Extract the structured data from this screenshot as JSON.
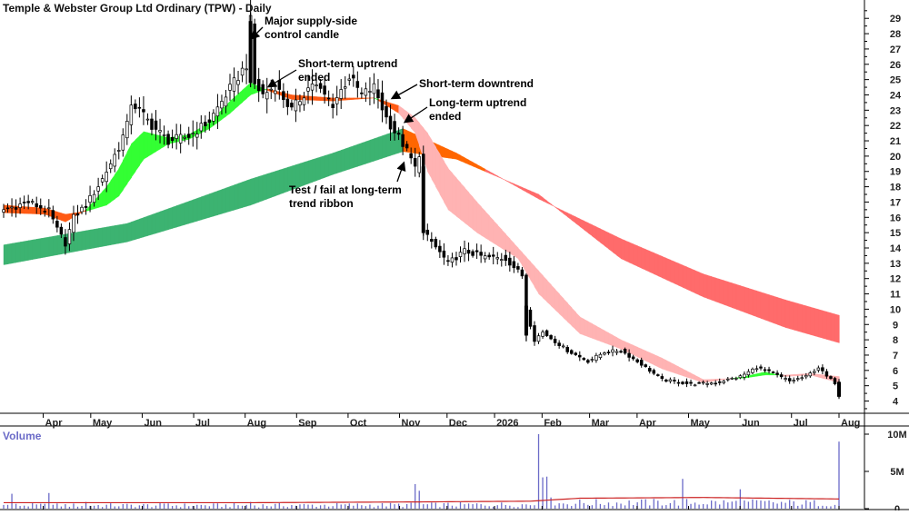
{
  "chart_data": {
    "type": "candlestick",
    "title": "Temple & Webster Group Ltd Ordinary (TPW) - Daily",
    "volume_label": "Volume",
    "price_axis": {
      "range": [
        3.2,
        30.2
      ],
      "ticks": [
        4,
        5,
        6,
        7,
        8,
        9,
        10,
        11,
        12,
        13,
        14,
        15,
        16,
        17,
        18,
        19,
        20,
        21,
        22,
        23,
        24,
        25,
        26,
        27,
        28,
        29
      ]
    },
    "volume_axis": {
      "range": [
        0,
        10000000
      ],
      "ticks": [
        {
          "value": 0,
          "label": "0"
        },
        {
          "value": 5000000,
          "label": "5M"
        },
        {
          "value": 10000000,
          "label": "10M"
        }
      ]
    },
    "x_labels": [
      "Apr",
      "May",
      "Jun",
      "Jul",
      "Aug",
      "Sep",
      "Oct",
      "Nov",
      "Dec",
      "2026",
      "Feb",
      "Mar",
      "Apr",
      "May",
      "Jun",
      "Jul",
      "Aug"
    ],
    "price_path": [
      [
        0,
        16.5
      ],
      [
        6,
        17.0
      ],
      [
        11,
        16.4
      ],
      [
        13,
        15.2
      ],
      [
        15,
        14.3
      ],
      [
        17,
        16.0
      ],
      [
        20,
        16.8
      ],
      [
        24,
        18.5
      ],
      [
        28,
        20.6
      ],
      [
        30,
        22.0
      ],
      [
        31,
        23.5
      ],
      [
        33,
        23.0
      ],
      [
        36,
        22.0
      ],
      [
        40,
        21.0
      ],
      [
        45,
        21.3
      ],
      [
        50,
        22.3
      ],
      [
        54,
        24.0
      ],
      [
        57,
        25.2
      ],
      [
        59,
        26.0
      ],
      [
        60,
        28.8
      ],
      [
        61,
        24.7
      ],
      [
        63,
        24.0
      ],
      [
        66,
        24.6
      ],
      [
        70,
        23.0
      ],
      [
        75,
        24.8
      ],
      [
        80,
        23.4
      ],
      [
        84,
        25.2
      ],
      [
        87,
        24.0
      ],
      [
        90,
        24.5
      ],
      [
        93,
        22.5
      ],
      [
        95,
        21.6
      ],
      [
        97,
        20.8
      ],
      [
        99,
        19.8
      ],
      [
        100,
        19.2
      ],
      [
        101,
        20.2
      ],
      [
        102,
        15.0
      ],
      [
        104,
        14.4
      ],
      [
        108,
        13.0
      ],
      [
        112,
        13.8
      ],
      [
        117,
        13.4
      ],
      [
        122,
        13.3
      ],
      [
        126,
        12.2
      ],
      [
        127,
        10.0
      ],
      [
        129,
        8.0
      ],
      [
        131,
        8.5
      ],
      [
        137,
        7.3
      ],
      [
        142,
        6.6
      ],
      [
        146,
        7.2
      ],
      [
        150,
        7.3
      ],
      [
        155,
        6.4
      ],
      [
        160,
        5.4
      ],
      [
        167,
        5.1
      ],
      [
        173,
        5.2
      ],
      [
        179,
        5.6
      ],
      [
        183,
        6.2
      ],
      [
        187,
        5.8
      ],
      [
        191,
        5.3
      ],
      [
        195,
        5.6
      ],
      [
        198,
        6.2
      ],
      [
        200,
        5.6
      ],
      [
        202,
        5.2
      ],
      [
        203,
        4.4
      ]
    ],
    "short_term_ribbon": {
      "fast": [
        [
          0,
          16.3
        ],
        [
          10,
          16.2
        ],
        [
          15,
          15.7
        ],
        [
          20,
          16.5
        ],
        [
          25,
          18.0
        ],
        [
          28,
          19.2
        ],
        [
          31,
          20.8
        ],
        [
          34,
          21.6
        ],
        [
          40,
          21.2
        ],
        [
          45,
          21.4
        ],
        [
          50,
          22.2
        ],
        [
          55,
          23.6
        ],
        [
          60,
          24.8
        ],
        [
          64,
          24.3
        ],
        [
          70,
          23.7
        ],
        [
          80,
          23.6
        ],
        [
          90,
          23.8
        ],
        [
          96,
          22.8
        ],
        [
          100,
          21.5
        ],
        [
          103,
          19.0
        ],
        [
          108,
          16.5
        ],
        [
          115,
          15.0
        ],
        [
          125,
          13.3
        ],
        [
          130,
          11.0
        ],
        [
          140,
          8.4
        ],
        [
          150,
          7.4
        ],
        [
          160,
          6.1
        ],
        [
          170,
          5.2
        ],
        [
          180,
          5.6
        ],
        [
          185,
          5.9
        ],
        [
          190,
          5.6
        ],
        [
          196,
          5.7
        ],
        [
          203,
          5.2
        ]
      ],
      "slow": [
        [
          0,
          16.8
        ],
        [
          10,
          16.6
        ],
        [
          15,
          16.2
        ],
        [
          20,
          16.4
        ],
        [
          25,
          16.8
        ],
        [
          28,
          17.4
        ],
        [
          31,
          18.6
        ],
        [
          34,
          19.8
        ],
        [
          40,
          20.8
        ],
        [
          45,
          21.1
        ],
        [
          50,
          21.8
        ],
        [
          55,
          22.8
        ],
        [
          60,
          24.0
        ],
        [
          64,
          24.4
        ],
        [
          70,
          24.0
        ],
        [
          80,
          23.8
        ],
        [
          90,
          23.8
        ],
        [
          96,
          23.3
        ],
        [
          100,
          22.5
        ],
        [
          103,
          21.5
        ],
        [
          108,
          19.2
        ],
        [
          115,
          17.0
        ],
        [
          125,
          14.0
        ],
        [
          130,
          12.5
        ],
        [
          140,
          9.5
        ],
        [
          150,
          8.0
        ],
        [
          160,
          6.8
        ],
        [
          170,
          5.4
        ],
        [
          180,
          5.5
        ],
        [
          185,
          5.7
        ],
        [
          190,
          5.7
        ],
        [
          196,
          5.8
        ],
        [
          203,
          5.6
        ]
      ],
      "colors": {
        "bull": "#33ff33",
        "bear": "#ff5a14",
        "down": "#ffb3b3"
      }
    },
    "long_term_ribbon": {
      "upper": [
        [
          0,
          14.2
        ],
        [
          30,
          15.6
        ],
        [
          60,
          18.5
        ],
        [
          80,
          20.2
        ],
        [
          97,
          21.8
        ],
        [
          110,
          20.2
        ],
        [
          130,
          17.2
        ],
        [
          150,
          14.6
        ],
        [
          170,
          12.3
        ],
        [
          190,
          10.6
        ],
        [
          203,
          9.6
        ]
      ],
      "lower": [
        [
          0,
          12.9
        ],
        [
          30,
          14.4
        ],
        [
          60,
          16.8
        ],
        [
          80,
          18.8
        ],
        [
          97,
          20.3
        ],
        [
          110,
          19.8
        ],
        [
          130,
          17.5
        ],
        [
          150,
          13.3
        ],
        [
          170,
          10.8
        ],
        [
          190,
          8.8
        ],
        [
          203,
          7.8
        ]
      ],
      "colors": {
        "bull": "#3cb371",
        "bear": "#ff6600",
        "down": "#ff6b6b"
      }
    },
    "volume_spikes": [
      {
        "bar": 2,
        "value": 2000000
      },
      {
        "bar": 11,
        "value": 2100000
      },
      {
        "bar": 20,
        "value": 900000
      },
      {
        "bar": 40,
        "value": 700000
      },
      {
        "bar": 60,
        "value": 900000
      },
      {
        "bar": 100,
        "value": 3300000
      },
      {
        "bar": 101,
        "value": 2400000
      },
      {
        "bar": 130,
        "value": 10000000
      },
      {
        "bar": 131,
        "value": 4200000
      },
      {
        "bar": 132,
        "value": 4300000
      },
      {
        "bar": 133,
        "value": 1500000
      },
      {
        "bar": 165,
        "value": 4000000
      },
      {
        "bar": 179,
        "value": 2600000
      },
      {
        "bar": 203,
        "value": 9000000
      }
    ],
    "volume_avg": [
      [
        0,
        800000
      ],
      [
        60,
        800000
      ],
      [
        100,
        900000
      ],
      [
        128,
        1000000
      ],
      [
        140,
        1400000
      ],
      [
        170,
        1500000
      ],
      [
        203,
        1300000
      ]
    ],
    "annotations": [
      {
        "id": "annot-supply",
        "lines": [
          "Major supply-side",
          "control candle"
        ]
      },
      {
        "id": "annot-st-uptrend",
        "lines": [
          "Short-term uptrend",
          "ended"
        ]
      },
      {
        "id": "annot-st-downtrend",
        "lines": [
          "Short-term downtrend"
        ]
      },
      {
        "id": "annot-lt-uptrend",
        "lines": [
          "Long-term uptrend",
          "ended"
        ]
      },
      {
        "id": "annot-test-fail",
        "lines": [
          "Test / fail at long-term",
          "trend ribbon"
        ]
      }
    ]
  }
}
